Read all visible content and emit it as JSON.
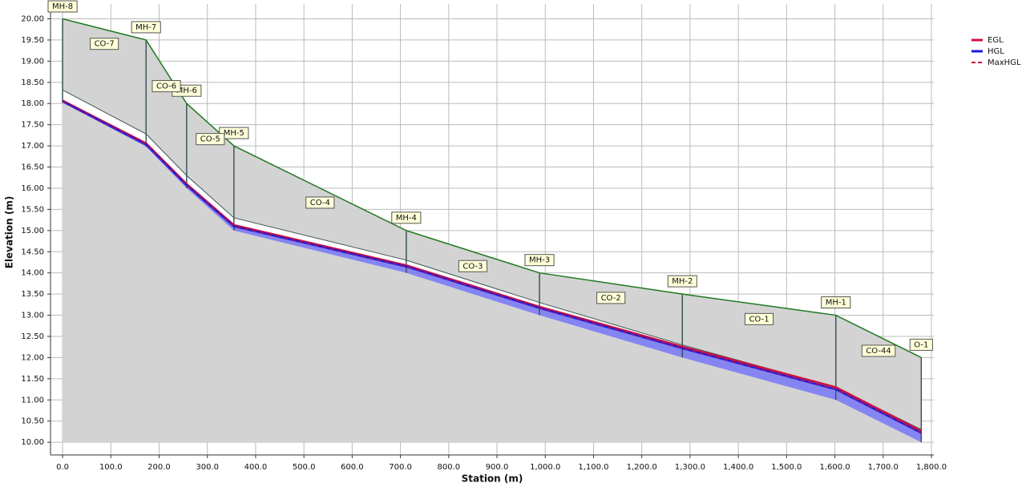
{
  "chart_data": {
    "type": "profile",
    "x_label": "Station (m)",
    "y_label": "Elevation (m)",
    "x": [
      0,
      173,
      257,
      355,
      712,
      988,
      1284,
      1602,
      1779
    ],
    "structures": [
      "MH-8",
      "MH-7",
      "MH-6",
      "MH-5",
      "MH-4",
      "MH-3",
      "MH-2",
      "MH-1",
      "O-1"
    ],
    "pipes": [
      "CO-7",
      "CO-6",
      "CO-5",
      "CO-4",
      "CO-3",
      "CO-2",
      "CO-1",
      "CO-44"
    ],
    "series": [
      {
        "kind": "ground",
        "color": "#1f7a1f",
        "values": [
          20.0,
          19.5,
          18.0,
          17.0,
          15.0,
          14.0,
          13.5,
          13.0,
          12.0
        ]
      },
      {
        "kind": "crown",
        "color": "#3d5656",
        "values": [
          18.32,
          17.28,
          16.3,
          15.3,
          14.3,
          13.3,
          12.3,
          11.3,
          10.3
        ]
      },
      {
        "kind": "invert",
        "color": "#7070f0",
        "values": [
          18.02,
          16.98,
          16.0,
          15.0,
          14.0,
          13.0,
          12.0,
          11.0,
          10.0
        ]
      },
      {
        "name": "EGL",
        "kind": "line",
        "color": "#d0103a",
        "values": [
          18.07,
          17.06,
          16.1,
          15.13,
          14.18,
          13.2,
          12.26,
          11.3,
          10.27
        ]
      },
      {
        "name": "HGL",
        "kind": "line",
        "color": "#1a1ae0",
        "values": [
          18.05,
          17.03,
          16.07,
          15.1,
          14.15,
          13.17,
          12.22,
          11.25,
          10.22
        ]
      },
      {
        "name": "MaxHGL",
        "kind": "line",
        "dash": true,
        "color": "#d0103a",
        "values": [
          18.05,
          17.03,
          16.07,
          15.1,
          14.15,
          13.17,
          12.22,
          11.25,
          10.22
        ]
      }
    ],
    "xlim": [
      -25,
      1805
    ],
    "ylim": [
      9.7,
      20.35
    ],
    "xticks": [
      {
        "value": 0,
        "label": "0.0"
      },
      {
        "value": 100,
        "label": "100.0"
      },
      {
        "value": 200,
        "label": "200.0"
      },
      {
        "value": 300,
        "label": "300.0"
      },
      {
        "value": 400,
        "label": "400.0"
      },
      {
        "value": 500,
        "label": "500.0"
      },
      {
        "value": 600,
        "label": "600.0"
      },
      {
        "value": 700,
        "label": "700.0"
      },
      {
        "value": 800,
        "label": "800.0"
      },
      {
        "value": 900,
        "label": "900.0"
      },
      {
        "value": 1000,
        "label": "1,000.0"
      },
      {
        "value": 1100,
        "label": "1,100.0"
      },
      {
        "value": 1200,
        "label": "1,200.0"
      },
      {
        "value": 1300,
        "label": "1,300.0"
      },
      {
        "value": 1400,
        "label": "1,400.0"
      },
      {
        "value": 1500,
        "label": "1,500.0"
      },
      {
        "value": 1600,
        "label": "1,600.0"
      },
      {
        "value": 1700,
        "label": "1,700.0"
      },
      {
        "value": 1800,
        "label": "1,800.0"
      }
    ],
    "yticks": [
      {
        "value": 10,
        "label": "10.00"
      },
      {
        "value": 10.5,
        "label": "10.50"
      },
      {
        "value": 11,
        "label": "11.00"
      },
      {
        "value": 11.5,
        "label": "11.50"
      },
      {
        "value": 12,
        "label": "12.00"
      },
      {
        "value": 12.5,
        "label": "12.50"
      },
      {
        "value": 13,
        "label": "13.00"
      },
      {
        "value": 13.5,
        "label": "13.50"
      },
      {
        "value": 14,
        "label": "14.00"
      },
      {
        "value": 14.5,
        "label": "14.50"
      },
      {
        "value": 15,
        "label": "15.00"
      },
      {
        "value": 15.5,
        "label": "15.50"
      },
      {
        "value": 16,
        "label": "16.00"
      },
      {
        "value": 16.5,
        "label": "16.50"
      },
      {
        "value": 17,
        "label": "17.00"
      },
      {
        "value": 17.5,
        "label": "17.50"
      },
      {
        "value": 18,
        "label": "18.00"
      },
      {
        "value": 18.5,
        "label": "18.50"
      },
      {
        "value": 19,
        "label": "19.00"
      },
      {
        "value": 19.5,
        "label": "19.50"
      },
      {
        "value": 20,
        "label": "20.00"
      }
    ],
    "grid": true
  }
}
